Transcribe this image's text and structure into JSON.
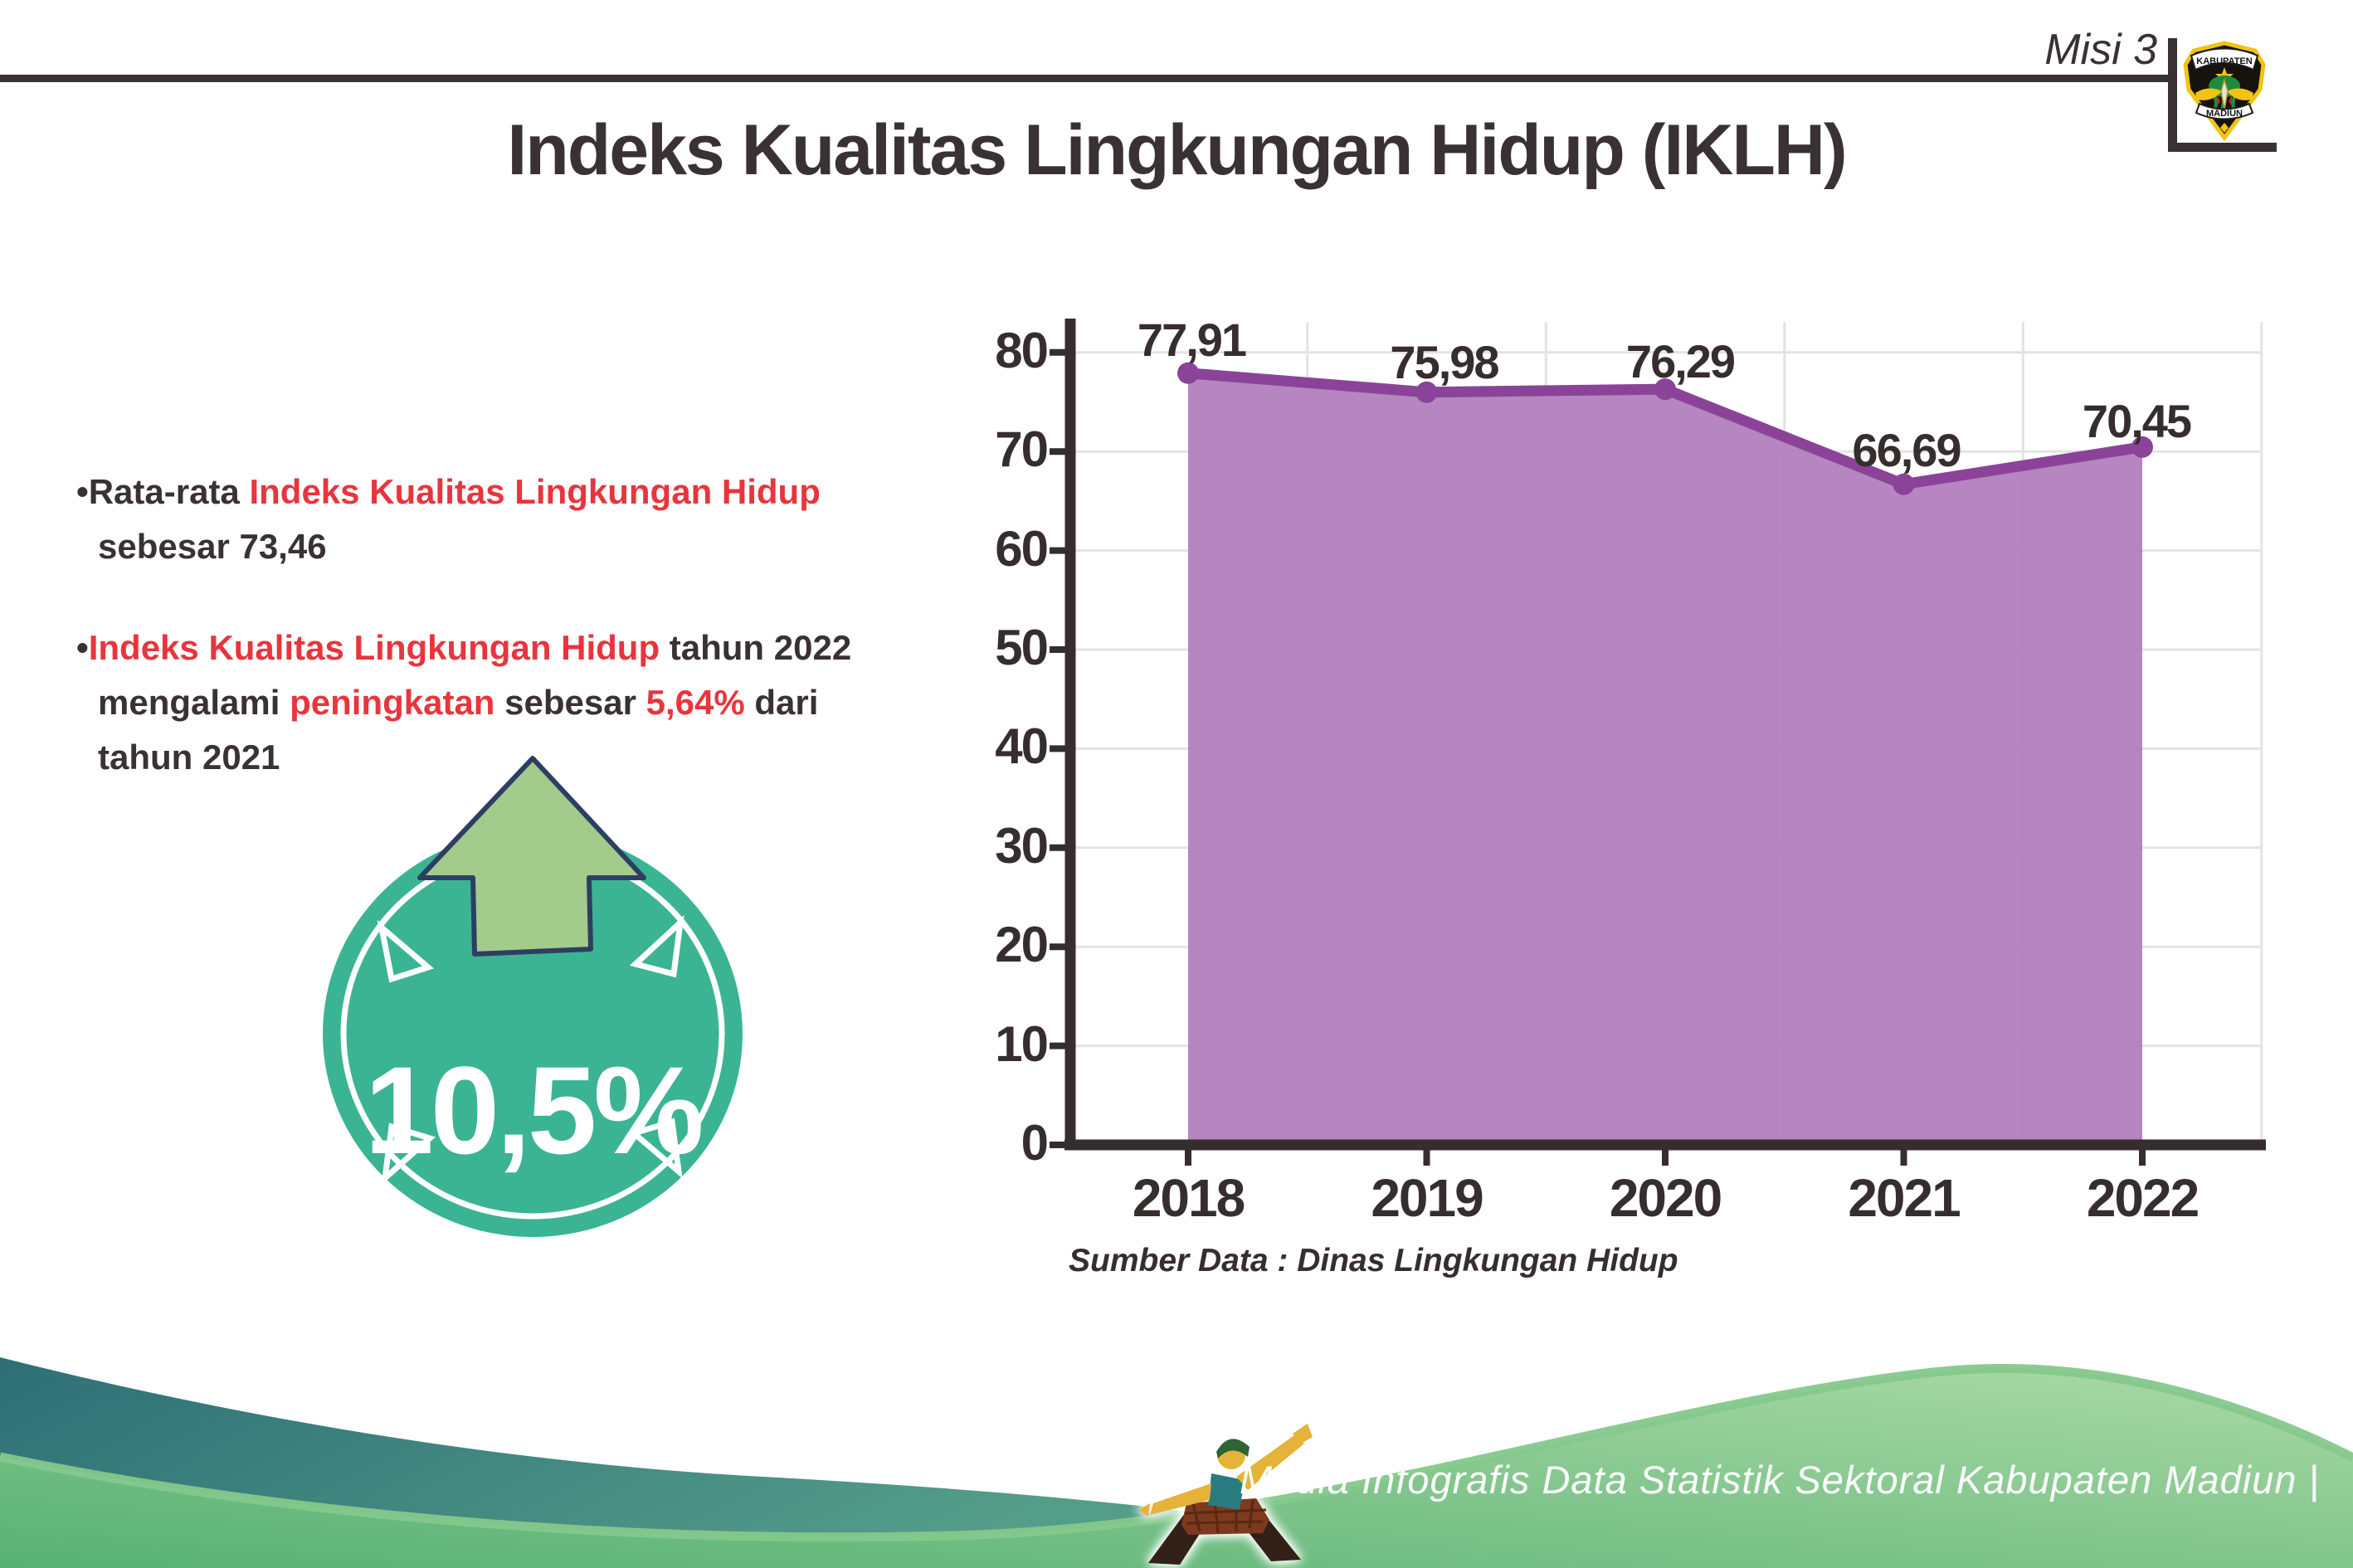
{
  "header": {
    "misi_label": "Misi 3",
    "logo": {
      "top_text": "KABUPATEN",
      "bottom_text": "MADIUN"
    }
  },
  "title": "Indeks Kualitas Lingkungan Hidup (IKLH)",
  "bullets": {
    "b1": {
      "seg1": "Rata-rata ",
      "seg2": "Indeks Kualitas Lingkungan Hidup",
      "seg3": "sebesar 73,46"
    },
    "b2": {
      "seg1": "Indeks Kualitas Lingkungan Hidup",
      "seg2": " tahun 2022",
      "seg3": "mengalami ",
      "seg4": "peningkatan",
      "seg5": " sebesar ",
      "seg6": "5,64%",
      "seg7": " dari",
      "seg8": "tahun 2021"
    }
  },
  "badge": {
    "value": "10,5%",
    "circle_color": "#3bb493",
    "arrow_color": "#a3cb8c"
  },
  "chart_data": {
    "type": "area",
    "categories": [
      "2018",
      "2019",
      "2020",
      "2021",
      "2022"
    ],
    "values": [
      77.91,
      75.98,
      76.29,
      66.69,
      70.45
    ],
    "labels": [
      "77,91",
      "75,98",
      "76,29",
      "66,69",
      "70,45"
    ],
    "title": "",
    "xlabel": "",
    "ylabel": "",
    "ylim": [
      0,
      83
    ],
    "yticks": [
      0,
      10,
      20,
      30,
      40,
      50,
      60,
      70,
      80
    ],
    "grid": true,
    "legend": "none",
    "series_color": "#8b4399",
    "fill_color": "#af7dba",
    "source": "Sumber Data : Dinas Lingkungan Hidup"
  },
  "footer": {
    "text": "Media Infografis Data Statistik Sektoral Kabupaten Madiun |"
  },
  "colors": {
    "ink": "#3a3134",
    "red_accent": "#e8353d",
    "badge_teal": "#3bb493",
    "arrow_green": "#a3cb8c",
    "arrow_outline": "#2e3e63",
    "area_fill": "#af7dba",
    "line_purple": "#8b4399",
    "wave_teal": "#2e6f76",
    "wave_green": "#57b173"
  }
}
